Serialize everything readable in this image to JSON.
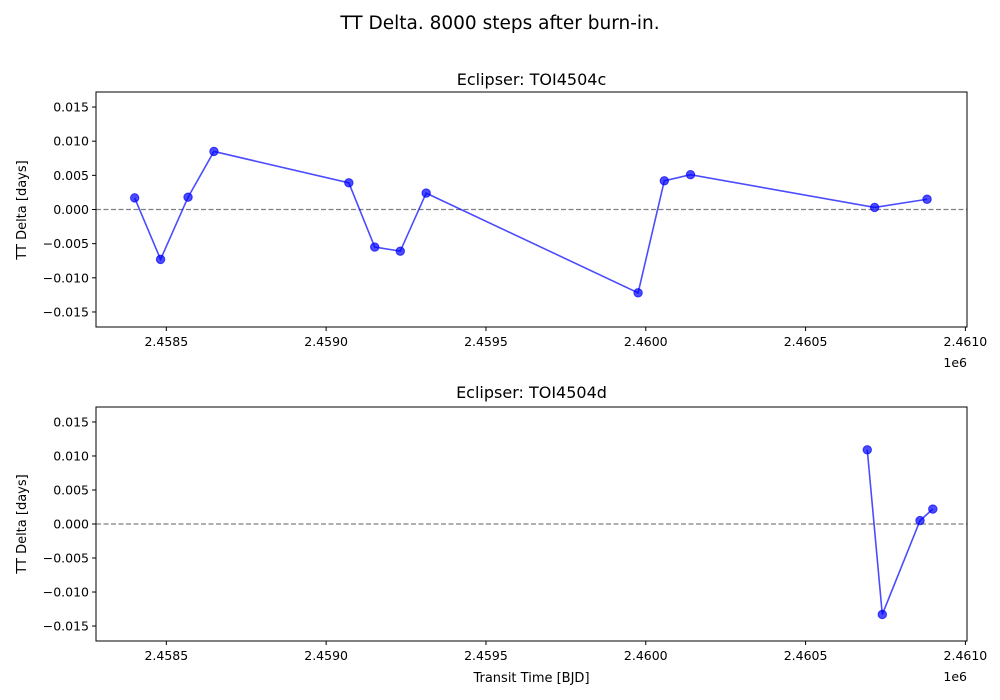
{
  "figure": {
    "title": "TT Delta. 8000 steps after burn-in."
  },
  "chart_data": [
    {
      "type": "line",
      "title": "Eclipser: TOI4504c",
      "xlabel": "",
      "ylabel": "TT Delta [days]",
      "x_offset_label": "1e6",
      "xlim": [
        2458280,
        2461005
      ],
      "ylim": [
        -0.0172,
        0.0172
      ],
      "xticks": [
        2.4585,
        2.459,
        2.4595,
        2.46,
        2.4605,
        2.461
      ],
      "xtick_labels": [
        "2.4585",
        "2.4590",
        "2.4595",
        "2.4600",
        "2.4605",
        "2.4610"
      ],
      "yticks": [
        -0.015,
        -0.01,
        -0.005,
        0,
        0.005,
        0.01,
        0.015
      ],
      "ytick_labels": [
        "−0.015",
        "−0.010",
        "−0.005",
        "0.000",
        "0.005",
        "0.010",
        "0.015"
      ],
      "reference_line_y": 0,
      "color": "#0000ff",
      "grid": false,
      "series": [
        {
          "x": [
            2458401,
            2458482,
            2458568,
            2458649,
            2459071,
            2459152,
            2459232,
            2459313,
            2459976,
            2460058,
            2460140,
            2460716,
            2460880
          ],
          "y": [
            0.0017,
            -0.0073,
            0.0018,
            0.0085,
            0.0039,
            -0.0055,
            -0.0061,
            0.0024,
            -0.0122,
            0.0042,
            0.0051,
            0.0003,
            0.0015
          ]
        }
      ]
    },
    {
      "type": "line",
      "title": "Eclipser: TOI4504d",
      "xlabel": "Transit Time [BJD]",
      "ylabel": "TT Delta [days]",
      "x_offset_label": "1e6",
      "xlim": [
        2458280,
        2461005
      ],
      "ylim": [
        -0.0172,
        0.0172
      ],
      "xticks": [
        2.4585,
        2.459,
        2.4595,
        2.46,
        2.4605,
        2.461
      ],
      "xtick_labels": [
        "2.4585",
        "2.4590",
        "2.4595",
        "2.4600",
        "2.4605",
        "2.4610"
      ],
      "yticks": [
        -0.015,
        -0.01,
        -0.005,
        0,
        0.005,
        0.01,
        0.015
      ],
      "ytick_labels": [
        "−0.015",
        "−0.010",
        "−0.005",
        "0.000",
        "0.005",
        "0.010",
        "0.015"
      ],
      "reference_line_y": 0,
      "color": "#0000ff",
      "grid": false,
      "series": [
        {
          "x": [
            2460693,
            2460740,
            2460858,
            2460898
          ],
          "y": [
            0.0109,
            -0.0133,
            0.0005,
            0.0022
          ]
        }
      ]
    }
  ]
}
